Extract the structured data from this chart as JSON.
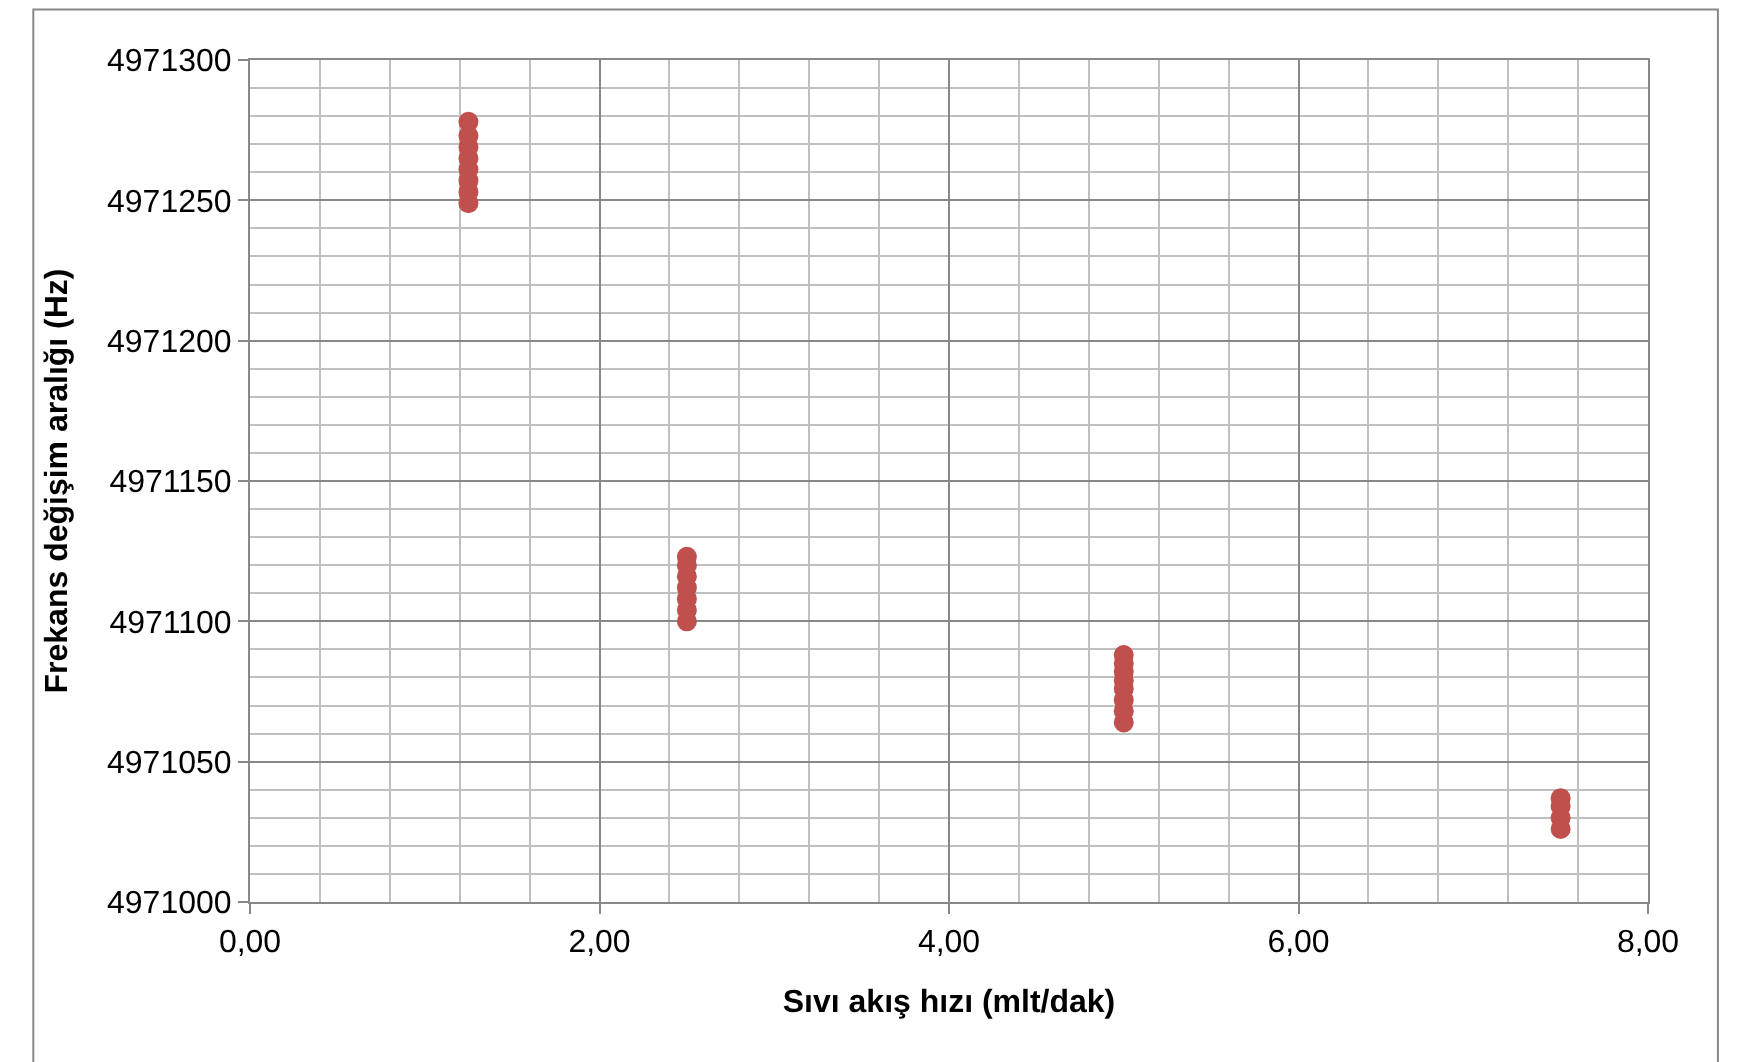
{
  "chart_data": {
    "type": "scatter",
    "xlabel": "Sıvı akış hızı (mlt/dak)",
    "ylabel": "Frekans değişim aralığı (Hz)",
    "x": [
      1.25,
      1.25,
      1.25,
      1.25,
      1.25,
      1.25,
      1.25,
      1.25,
      2.5,
      2.5,
      2.5,
      2.5,
      2.5,
      2.5,
      2.5,
      5,
      5,
      5,
      5,
      5,
      5,
      5,
      5,
      7.5,
      7.5,
      7.5,
      7.5
    ],
    "series": [
      {
        "color": "#c0504d",
        "values": [
          4971249,
          4971253,
          4971257,
          4971261,
          4971265,
          4971269,
          4971273,
          4971278,
          4971100,
          4971104,
          4971108,
          4971112,
          4971116,
          4971120,
          4971123,
          4971064,
          4971068,
          4971072,
          4971076,
          4971079,
          4971082,
          4971085,
          4971088,
          4971026,
          4971030,
          4971034,
          4971037
        ]
      }
    ],
    "xlim": [
      0,
      8
    ],
    "xticks": [
      {
        "value": 0,
        "label": "0,00"
      },
      {
        "value": 2,
        "label": "2,00"
      },
      {
        "value": 4,
        "label": "4,00"
      },
      {
        "value": 6,
        "label": "6,00"
      },
      {
        "value": 8,
        "label": "8,00"
      }
    ],
    "ylim": [
      4971000,
      4971300
    ],
    "yticks": [
      4971000,
      4971050,
      4971100,
      4971150,
      4971200,
      4971250,
      4971300
    ],
    "grid": true,
    "marker": "circle",
    "legend": false
  }
}
